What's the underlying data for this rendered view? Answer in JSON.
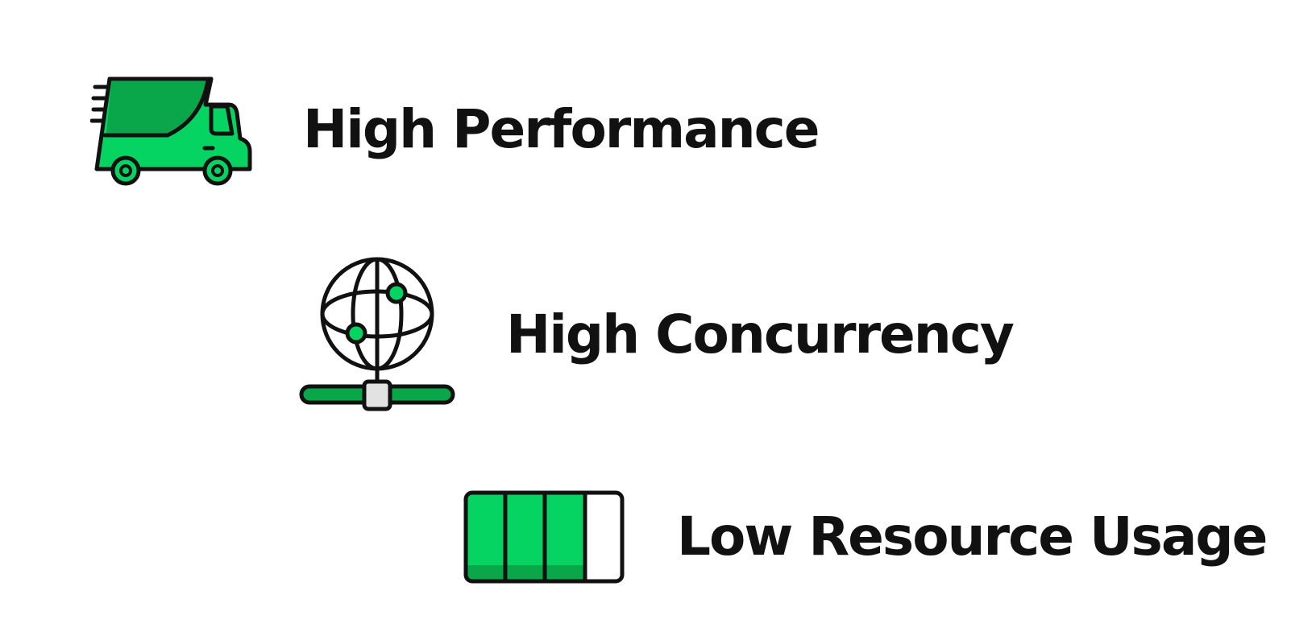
{
  "colors": {
    "accent_green": "#06d462",
    "dark_green": "#0aa64a",
    "outline": "#111111",
    "connector_gray": "#e2e2e2",
    "background": "#ffffff"
  },
  "features": [
    {
      "label": "High Performance",
      "icon": "delivery-truck-icon"
    },
    {
      "label": "High Concurrency",
      "icon": "network-globe-icon"
    },
    {
      "label": "Low Resource Usage",
      "icon": "battery-level-icon",
      "level_fraction": 0.75,
      "segments_filled": 3,
      "segments_total": 4
    }
  ]
}
